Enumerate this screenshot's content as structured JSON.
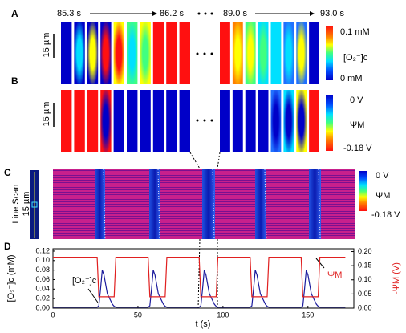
{
  "panel_a": {
    "label": "A",
    "times": [
      "85.3 s",
      "86.2 s",
      "89.0 s",
      "93.0 s"
    ],
    "scale_bar": "15 µm",
    "colorbar": {
      "max": "0.1 mM",
      "name": "[O₂⁻]c",
      "min": "0 mM"
    }
  },
  "panel_b": {
    "label": "B",
    "scale_bar": "15 µm",
    "colorbar": {
      "max": "0 V",
      "name": "ΨM",
      "min": "-0.18 V"
    }
  },
  "panel_c": {
    "label": "C",
    "title": "Line Scan",
    "scale_bar": "15 µm",
    "colorbar": {
      "max": "0 V",
      "name": "ΨM",
      "min": "-0.18 V"
    }
  },
  "chart_data": {
    "type": "line",
    "panel_label": "D",
    "x_label": "t (s)",
    "y_label": "[O₂⁻]c (mM)",
    "y2_label": "-ΨM (V)",
    "x": [
      0,
      26,
      27,
      28,
      29,
      30,
      32,
      35,
      36,
      37,
      56,
      57,
      58,
      59,
      60,
      62,
      65,
      66,
      67,
      86,
      87,
      88,
      89,
      90,
      92,
      95,
      96,
      97,
      116,
      117,
      118,
      119,
      120,
      122,
      125,
      126,
      127,
      146,
      147,
      148,
      149,
      150,
      152,
      155,
      156,
      157,
      172
    ],
    "xlim": [
      0,
      177
    ],
    "xticks": [
      0,
      50,
      100,
      150
    ],
    "ylim": [
      0,
      0.125
    ],
    "yticks": [
      {
        "value": 0,
        "label": "0.00"
      },
      {
        "value": 0.02,
        "label": "0.02"
      },
      {
        "value": 0.04,
        "label": "0.04"
      },
      {
        "value": 0.06,
        "label": "0.06"
      },
      {
        "value": 0.08,
        "label": "0.08"
      },
      {
        "value": 0.1,
        "label": "0.10"
      },
      {
        "value": 0.12,
        "label": "0.12"
      }
    ],
    "y2lim": [
      0,
      0.21
    ],
    "y2ticks": [
      {
        "value": 0,
        "label": "0.00"
      },
      {
        "value": 0.05,
        "label": "0.05"
      },
      {
        "value": 0.1,
        "label": "0.10"
      },
      {
        "value": 0.15,
        "label": "0.15"
      },
      {
        "value": 0.2,
        "label": "0.20"
      }
    ],
    "series": [
      {
        "name": "[O₂⁻]c",
        "color": "#1a1a9c",
        "values": [
          0.002,
          0.002,
          0.005,
          0.04,
          0.08,
          0.07,
          0.03,
          0.008,
          0.004,
          0.002,
          0.002,
          0.005,
          0.04,
          0.08,
          0.07,
          0.03,
          0.008,
          0.004,
          0.002,
          0.002,
          0.005,
          0.04,
          0.08,
          0.07,
          0.03,
          0.008,
          0.004,
          0.002,
          0.002,
          0.005,
          0.04,
          0.08,
          0.07,
          0.03,
          0.008,
          0.004,
          0.002,
          0.002,
          0.005,
          0.04,
          0.08,
          0.07,
          0.03,
          0.008,
          0.004,
          0.002,
          0.002
        ]
      },
      {
        "name": "ΨM",
        "color": "#e02020",
        "axis": "y2",
        "values": [
          0.18,
          0.18,
          0.04,
          0.04,
          0.04,
          0.04,
          0.04,
          0.04,
          0.04,
          0.18,
          0.18,
          0.04,
          0.04,
          0.04,
          0.04,
          0.04,
          0.04,
          0.04,
          0.18,
          0.18,
          0.04,
          0.04,
          0.04,
          0.04,
          0.04,
          0.04,
          0.04,
          0.18,
          0.18,
          0.04,
          0.04,
          0.04,
          0.04,
          0.04,
          0.04,
          0.04,
          0.18,
          0.18,
          0.04,
          0.04,
          0.04,
          0.04,
          0.04,
          0.04,
          0.04,
          0.18,
          0.18
        ]
      }
    ]
  }
}
